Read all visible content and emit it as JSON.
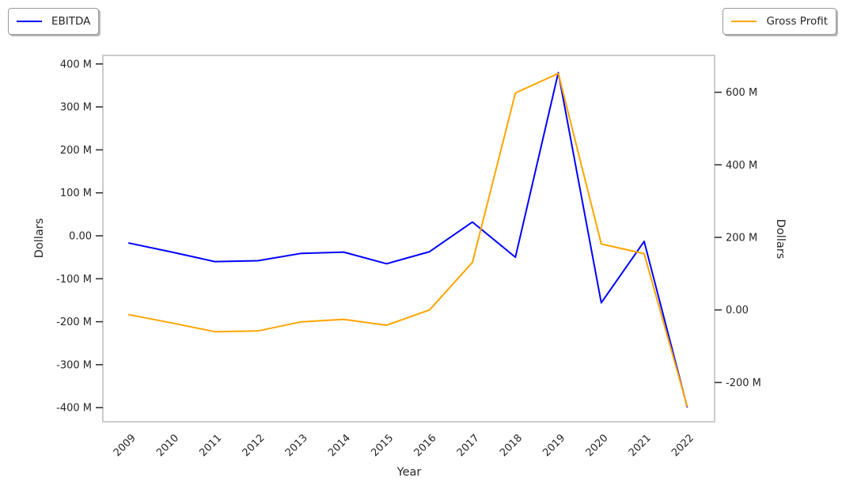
{
  "figure": {
    "background": "#ffffff"
  },
  "legend": {
    "entries": [
      {
        "label": "EBITDA",
        "color": "#0000ff"
      },
      {
        "label": "Gross Profit",
        "color": "#ffa500"
      }
    ]
  },
  "chart_data": {
    "type": "line",
    "title": "",
    "xlabel": "Year",
    "x_categories": [
      "2009",
      "2010",
      "2011",
      "2012",
      "2013",
      "2014",
      "2015",
      "2016",
      "2017",
      "2018",
      "2019",
      "2020",
      "2021",
      "2022"
    ],
    "series": [
      {
        "name": "EBITDA",
        "axis": "left",
        "color": "#0000ff",
        "values_millions": [
          -17,
          -38,
          -60,
          -58,
          -41,
          -38,
          -65,
          -37,
          32,
          -50,
          380,
          -156,
          -13,
          -398
        ]
      },
      {
        "name": "Gross Profit",
        "axis": "right",
        "color": "#ffa500",
        "values_millions": [
          -13,
          -36,
          -60,
          -58,
          -33,
          -26,
          -42,
          0,
          131,
          598,
          652,
          182,
          155,
          -265
        ]
      }
    ],
    "left_axis": {
      "label": "Dollars",
      "tick_values_millions": [
        400,
        300,
        200,
        100,
        0,
        -100,
        -200,
        -300,
        -400
      ],
      "tick_labels": [
        "400 M",
        "300 M",
        "200 M",
        "100 M",
        "0.00",
        "-100 M",
        "-200 M",
        "-300 M",
        "-400 M"
      ],
      "range_millions": [
        -433,
        420
      ]
    },
    "right_axis": {
      "label": "Dollars",
      "tick_values_millions": [
        600,
        400,
        200,
        0,
        -200
      ],
      "tick_labels": [
        "600 M",
        "400 M",
        "200 M",
        "0.00",
        "-200 M"
      ],
      "range_millions": [
        -308,
        702
      ]
    },
    "grid": false,
    "legend_position": [
      "figure upper-left",
      "figure upper-right"
    ]
  },
  "style_colors": {
    "spine": "#cccccc",
    "tick_mark": "#333333",
    "text": "#262626"
  }
}
